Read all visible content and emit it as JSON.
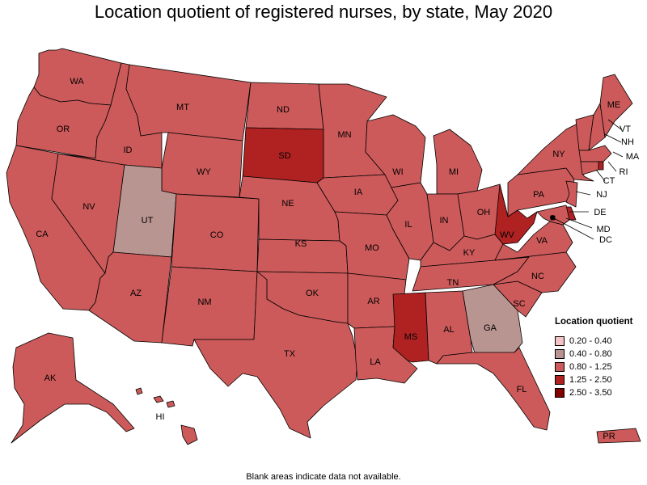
{
  "title": "Location quotient of registered nurses, by state, May 2020",
  "footnote": "Blank areas indicate data not available.",
  "legend": {
    "title": "Location quotient",
    "items": [
      {
        "label": "0.20 - 0.40",
        "color": "#f4c4c4"
      },
      {
        "label": "0.40 - 0.80",
        "color": "#b89590"
      },
      {
        "label": "0.80 - 1.25",
        "color": "#cd5a5a"
      },
      {
        "label": "1.25 - 2.50",
        "color": "#b02222"
      },
      {
        "label": "2.50 - 3.50",
        "color": "#800000"
      }
    ]
  },
  "chart_data": {
    "type": "choropleth",
    "title": "Location quotient of registered nurses, by state, May 2020",
    "states": [
      {
        "abbr": "WA",
        "class": "0.80 - 1.25"
      },
      {
        "abbr": "OR",
        "class": "0.80 - 1.25"
      },
      {
        "abbr": "CA",
        "class": "0.80 - 1.25"
      },
      {
        "abbr": "NV",
        "class": "0.80 - 1.25"
      },
      {
        "abbr": "ID",
        "class": "0.80 - 1.25"
      },
      {
        "abbr": "MT",
        "class": "0.80 - 1.25"
      },
      {
        "abbr": "WY",
        "class": "0.80 - 1.25"
      },
      {
        "abbr": "UT",
        "class": "0.40 - 0.80"
      },
      {
        "abbr": "AZ",
        "class": "0.80 - 1.25"
      },
      {
        "abbr": "CO",
        "class": "0.80 - 1.25"
      },
      {
        "abbr": "NM",
        "class": "0.80 - 1.25"
      },
      {
        "abbr": "ND",
        "class": "0.80 - 1.25"
      },
      {
        "abbr": "SD",
        "class": "1.25 - 2.50"
      },
      {
        "abbr": "NE",
        "class": "0.80 - 1.25"
      },
      {
        "abbr": "KS",
        "class": "0.80 - 1.25"
      },
      {
        "abbr": "OK",
        "class": "0.80 - 1.25"
      },
      {
        "abbr": "TX",
        "class": "0.80 - 1.25"
      },
      {
        "abbr": "MN",
        "class": "0.80 - 1.25"
      },
      {
        "abbr": "IA",
        "class": "0.80 - 1.25"
      },
      {
        "abbr": "MO",
        "class": "0.80 - 1.25"
      },
      {
        "abbr": "AR",
        "class": "0.80 - 1.25"
      },
      {
        "abbr": "LA",
        "class": "0.80 - 1.25"
      },
      {
        "abbr": "WI",
        "class": "0.80 - 1.25"
      },
      {
        "abbr": "IL",
        "class": "0.80 - 1.25"
      },
      {
        "abbr": "MI",
        "class": "0.80 - 1.25"
      },
      {
        "abbr": "IN",
        "class": "0.80 - 1.25"
      },
      {
        "abbr": "OH",
        "class": "0.80 - 1.25"
      },
      {
        "abbr": "KY",
        "class": "0.80 - 1.25"
      },
      {
        "abbr": "TN",
        "class": "0.80 - 1.25"
      },
      {
        "abbr": "MS",
        "class": "1.25 - 2.50"
      },
      {
        "abbr": "AL",
        "class": "0.80 - 1.25"
      },
      {
        "abbr": "GA",
        "class": "0.40 - 0.80"
      },
      {
        "abbr": "FL",
        "class": "0.80 - 1.25"
      },
      {
        "abbr": "SC",
        "class": "0.80 - 1.25"
      },
      {
        "abbr": "NC",
        "class": "0.80 - 1.25"
      },
      {
        "abbr": "VA",
        "class": "0.80 - 1.25"
      },
      {
        "abbr": "WV",
        "class": "1.25 - 2.50"
      },
      {
        "abbr": "PA",
        "class": "0.80 - 1.25"
      },
      {
        "abbr": "NY",
        "class": "0.80 - 1.25"
      },
      {
        "abbr": "VT",
        "class": "0.80 - 1.25"
      },
      {
        "abbr": "NH",
        "class": "0.80 - 1.25"
      },
      {
        "abbr": "ME",
        "class": "0.80 - 1.25"
      },
      {
        "abbr": "MA",
        "class": "0.80 - 1.25"
      },
      {
        "abbr": "RI",
        "class": "1.25 - 2.50"
      },
      {
        "abbr": "CT",
        "class": "0.80 - 1.25"
      },
      {
        "abbr": "NJ",
        "class": "0.80 - 1.25"
      },
      {
        "abbr": "DE",
        "class": "1.25 - 2.50"
      },
      {
        "abbr": "MD",
        "class": "0.80 - 1.25"
      },
      {
        "abbr": "DC",
        "class": "2.50 - 3.50"
      },
      {
        "abbr": "AK",
        "class": "0.80 - 1.25"
      },
      {
        "abbr": "HI",
        "class": "0.80 - 1.25"
      },
      {
        "abbr": "PR",
        "class": "0.80 - 1.25"
      }
    ]
  }
}
